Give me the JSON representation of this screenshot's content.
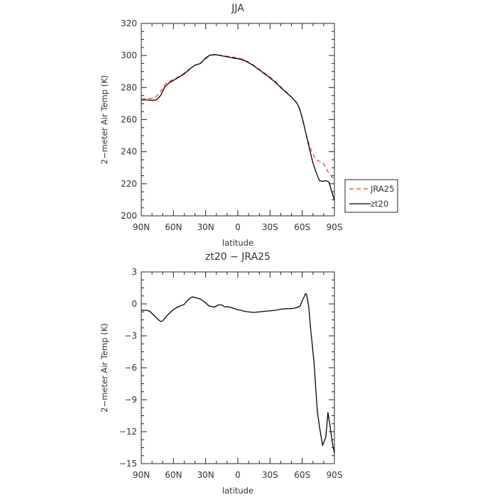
{
  "chart_data": [
    {
      "type": "line",
      "title": "JJA",
      "xlabel": "latitude",
      "ylabel": "2−meter Air Temp (K)",
      "xlim": [
        90,
        -90
      ],
      "ylim": [
        200,
        320
      ],
      "x_ticks": [
        90,
        60,
        30,
        0,
        -30,
        -60,
        -90
      ],
      "x_tick_labels": [
        "90N",
        "60N",
        "30N",
        "0",
        "30S",
        "60S",
        "90S"
      ],
      "y_ticks": [
        200,
        220,
        240,
        260,
        280,
        300,
        320
      ],
      "y_tick_labels": [
        "200",
        "220",
        "240",
        "260",
        "280",
        "300",
        "320"
      ],
      "grid": false,
      "legend": "outside-right",
      "series": [
        {
          "name": "JRA25",
          "color": "#e8383b",
          "dash": "dashed",
          "x": [
            90,
            85,
            80,
            76,
            72,
            68,
            64,
            60,
            55,
            50,
            45,
            40,
            35,
            30,
            26,
            22,
            18,
            15,
            10,
            5,
            0,
            -5,
            -10,
            -15,
            -20,
            -25,
            -30,
            -35,
            -40,
            -45,
            -50,
            -55,
            -58,
            -61,
            -64,
            -67,
            -70,
            -73,
            -76,
            -79,
            -82,
            -85,
            -88,
            -90
          ],
          "values": [
            273,
            273,
            273.2,
            274.5,
            277.5,
            282,
            283.8,
            285,
            286.8,
            289,
            291.5,
            294,
            295,
            298,
            300,
            300.4,
            300.3,
            300,
            299.5,
            299,
            298.6,
            297.5,
            295.8,
            293.8,
            291.3,
            289,
            286.5,
            283.8,
            280.4,
            277.3,
            274,
            270.5,
            266,
            258,
            250,
            243,
            238.5,
            235,
            234,
            233.5,
            230,
            226.5,
            224,
            223
          ]
        },
        {
          "name": "zt20",
          "color": "#000000",
          "dash": "solid",
          "x": [
            90,
            85,
            80,
            76,
            72,
            68,
            64,
            60,
            55,
            50,
            45,
            40,
            35,
            30,
            26,
            22,
            18,
            15,
            10,
            5,
            0,
            -5,
            -10,
            -15,
            -20,
            -25,
            -30,
            -35,
            -40,
            -45,
            -50,
            -55,
            -58,
            -61,
            -64,
            -67,
            -70,
            -73,
            -76,
            -79,
            -82,
            -85,
            -88,
            -90
          ],
          "values": [
            272.3,
            272.3,
            272,
            272.3,
            275,
            280.5,
            283,
            284.5,
            286.5,
            288.5,
            291.5,
            294,
            295,
            298.5,
            300.2,
            300.6,
            300.2,
            299.8,
            299.2,
            298.5,
            298,
            297.2,
            295.5,
            293.5,
            291,
            288.5,
            286,
            283.3,
            280,
            277,
            274,
            270.3,
            266,
            258.5,
            249.8,
            241,
            233,
            227,
            222,
            221.5,
            222,
            221,
            214,
            210
          ]
        }
      ]
    },
    {
      "type": "line",
      "title": "zt20 − JRA25",
      "xlabel": "latitude",
      "ylabel": "2−meter Air Temp (K)",
      "xlim": [
        90,
        -90
      ],
      "ylim": [
        -15,
        3
      ],
      "x_ticks": [
        90,
        60,
        30,
        0,
        -30,
        -60,
        -90
      ],
      "x_tick_labels": [
        "90N",
        "60N",
        "30N",
        "0",
        "30S",
        "60S",
        "90S"
      ],
      "y_ticks": [
        3,
        0,
        -3,
        -6,
        -9,
        -12,
        -15
      ],
      "y_tick_labels": [
        "3",
        "0",
        "−3",
        "−6",
        "−9",
        "−12",
        "−15"
      ],
      "grid": false,
      "series": [
        {
          "color": "#000000",
          "dash": "solid",
          "x": [
            90,
            85,
            82,
            78,
            74,
            72,
            70,
            66,
            62,
            58,
            54,
            50,
            47,
            44,
            42,
            38,
            35,
            30,
            27,
            24,
            22,
            18,
            15,
            12,
            10,
            6,
            3,
            0,
            -3,
            -6,
            -10,
            -15,
            -20,
            -25,
            -30,
            -35,
            -40,
            -45,
            -50,
            -55,
            -58,
            -60,
            -62,
            -63,
            -64,
            -66,
            -68,
            -71,
            -74,
            -76,
            -79,
            -82,
            -84,
            -86,
            -88,
            -90
          ],
          "values": [
            -0.6,
            -0.6,
            -0.7,
            -1.1,
            -1.5,
            -1.65,
            -1.6,
            -1.1,
            -0.7,
            -0.4,
            -0.2,
            -0.05,
            0.3,
            0.6,
            0.65,
            0.55,
            0.45,
            0.1,
            -0.2,
            -0.25,
            -0.3,
            -0.1,
            -0.1,
            -0.3,
            -0.25,
            -0.35,
            -0.45,
            -0.55,
            -0.6,
            -0.7,
            -0.75,
            -0.8,
            -0.75,
            -0.7,
            -0.65,
            -0.6,
            -0.5,
            -0.45,
            -0.45,
            -0.35,
            -0.2,
            0.3,
            0.7,
            0.95,
            0.9,
            -0.2,
            -2.5,
            -5.5,
            -10,
            -11.5,
            -13.3,
            -12.5,
            -10.2,
            -11.5,
            -13,
            -14
          ]
        }
      ]
    }
  ]
}
